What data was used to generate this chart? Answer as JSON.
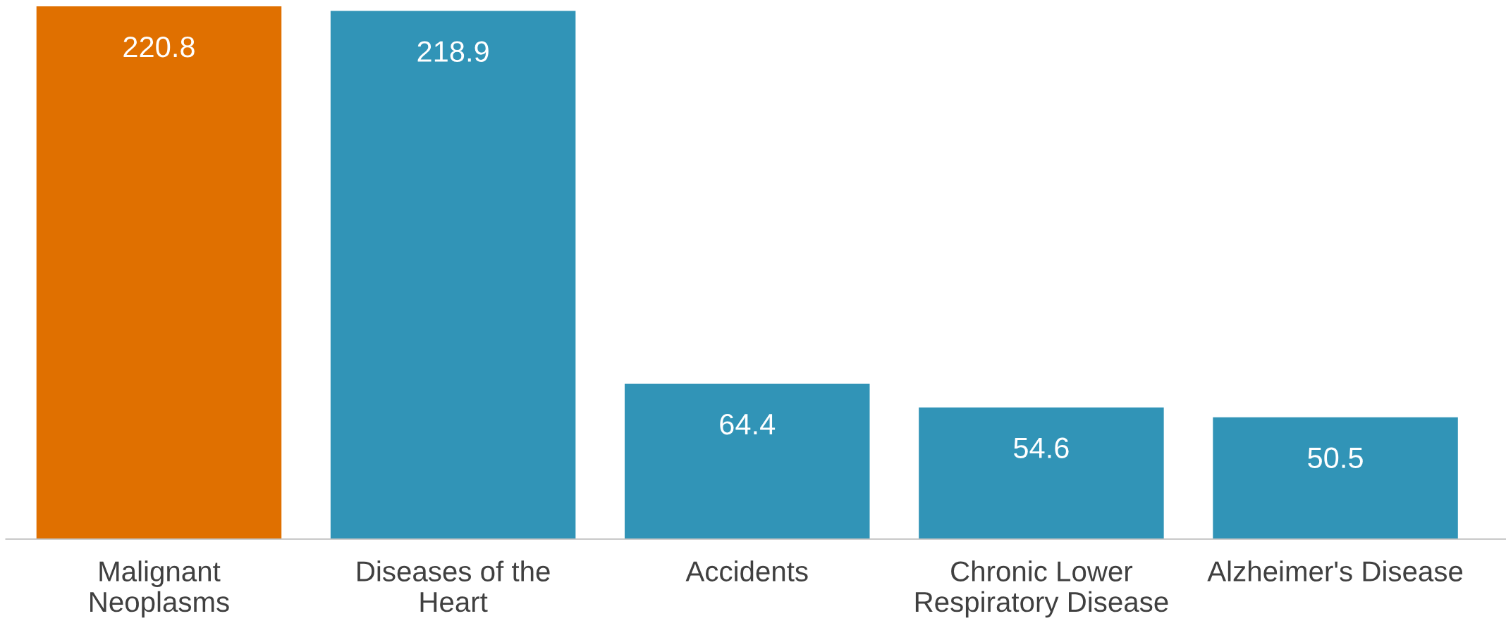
{
  "chart_data": {
    "type": "bar",
    "categories": [
      "Malignant\nNeoplasms",
      "Diseases of the\nHeart",
      "Accidents",
      "Chronic Lower\nRespiratory Disease",
      "Alzheimer's Disease"
    ],
    "values": [
      220.8,
      218.9,
      64.4,
      54.6,
      50.5
    ],
    "colors": [
      "#e07000",
      "#3194b7",
      "#3194b7",
      "#3194b7",
      "#3194b7"
    ],
    "data_labels": true,
    "grid": false,
    "legend": false,
    "tick_labels": "x"
  }
}
